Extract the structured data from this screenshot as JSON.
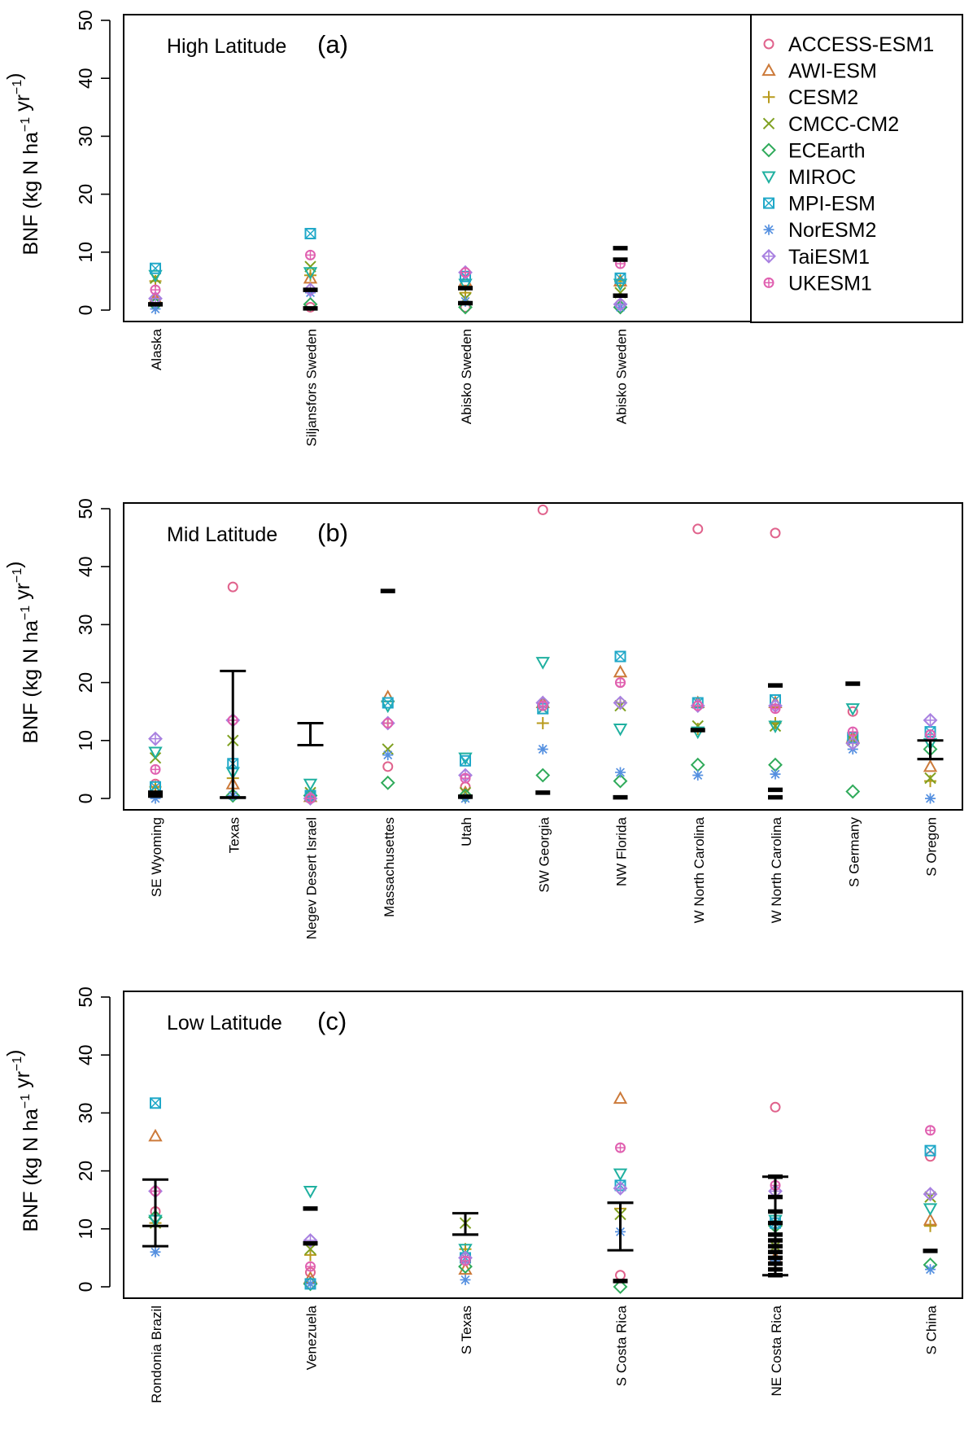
{
  "figure": {
    "y_axis_label": {
      "main": "BNF (kg N  ha",
      "sup1": "−1",
      "mid": "  yr",
      "sup2": "−1",
      "close": ")"
    }
  },
  "legend": [
    {
      "name": "ACCESS-ESM1",
      "color": "#E0628C",
      "marker": "circle"
    },
    {
      "name": "AWI-ESM",
      "color": "#CC7A3A",
      "marker": "triangle-up"
    },
    {
      "name": "CESM2",
      "color": "#B89A1C",
      "marker": "plus"
    },
    {
      "name": "CMCC-CM2",
      "color": "#7FA020",
      "marker": "cross"
    },
    {
      "name": "ECEarth",
      "color": "#2FAA5A",
      "marker": "diamond"
    },
    {
      "name": "MIROC",
      "color": "#1FB0A0",
      "marker": "triangle-down"
    },
    {
      "name": "MPI-ESM",
      "color": "#20A8C8",
      "marker": "square-cross"
    },
    {
      "name": "NorESM2",
      "color": "#5590E0",
      "marker": "asterisk"
    },
    {
      "name": "TaiESM1",
      "color": "#A880E0",
      "marker": "diamond-plus"
    },
    {
      "name": "UKESM1",
      "color": "#E060B0",
      "marker": "circle-plus"
    }
  ],
  "chart_data": [
    {
      "type": "scatter",
      "panel": "(a)",
      "subtitle": "High Latitude",
      "ylabel": "BNF (kg N ha-1 yr-1)",
      "ylim": [
        0,
        50
      ],
      "yticks": [
        0,
        10,
        20,
        30,
        40,
        50
      ],
      "categories": [
        "Alaska",
        "Siljansfors Sweden",
        "Abisko Sweden",
        "Abisko Sweden"
      ],
      "series": [
        {
          "name": "ACCESS-ESM1",
          "values": [
            1.5,
            0.5,
            0.5,
            1.0
          ]
        },
        {
          "name": "AWI-ESM",
          "values": [
            2.0,
            5.5,
            5.0,
            5.0
          ]
        },
        {
          "name": "CESM2",
          "values": [
            5.0,
            6.0,
            3.0,
            5.0
          ]
        },
        {
          "name": "CMCC-CM2",
          "values": [
            5.5,
            7.5,
            2.0,
            3.0
          ]
        },
        {
          "name": "ECEarth",
          "values": [
            1.0,
            1.0,
            0.5,
            0.5
          ]
        },
        {
          "name": "MIROC",
          "values": [
            6.0,
            6.5,
            4.5,
            4.5
          ]
        },
        {
          "name": "MPI-ESM",
          "values": [
            7.2,
            13.2,
            5.8,
            5.5
          ]
        },
        {
          "name": "NorESM2",
          "values": [
            0.2,
            3.0,
            1.5,
            0.5
          ]
        },
        {
          "name": "TaiESM1",
          "values": [
            2.0,
            3.5,
            6.5,
            1.0
          ]
        },
        {
          "name": "UKESM1",
          "values": [
            3.5,
            9.5,
            6.5,
            8.0
          ]
        }
      ],
      "observations": [
        {
          "category_index": 0,
          "marks": [
            1.0
          ]
        },
        {
          "category_index": 1,
          "marks": [
            3.5,
            0.3
          ]
        },
        {
          "category_index": 2,
          "marks": [
            3.8,
            1.2
          ]
        },
        {
          "category_index": 3,
          "marks": [
            10.7,
            8.7,
            2.5
          ]
        }
      ]
    },
    {
      "type": "scatter",
      "panel": "(b)",
      "subtitle": "Mid Latitude",
      "ylabel": "BNF (kg N ha-1 yr-1)",
      "ylim": [
        0,
        50
      ],
      "yticks": [
        0,
        10,
        20,
        30,
        40,
        50
      ],
      "categories": [
        "SE Wyoming",
        "Texas",
        "Negev Desert Israel",
        "Massachusettes",
        "Utah",
        "SW Georgia",
        "NW Florida",
        "W North Carolina",
        "W North Carolina",
        "S Germany",
        "S Oregon"
      ],
      "series": [
        {
          "name": "ACCESS-ESM1",
          "values": [
            2.5,
            36.5,
            0.5,
            5.5,
            2.0,
            49.8,
            20.0,
            46.5,
            45.8,
            15.0,
            11.0
          ]
        },
        {
          "name": "AWI-ESM",
          "values": [
            1.5,
            2.5,
            0.3,
            17.5,
            1.0,
            16.5,
            21.8,
            16.5,
            16.5,
            10.5,
            5.5
          ]
        },
        {
          "name": "CESM2",
          "values": [
            2.0,
            3.5,
            0.5,
            13.0,
            0.5,
            13.0,
            16.5,
            12.0,
            13.0,
            10.0,
            3.0
          ]
        },
        {
          "name": "CMCC-CM2",
          "values": [
            7.0,
            10.0,
            1.0,
            8.5,
            1.0,
            15.5,
            16.0,
            12.5,
            12.5,
            10.0,
            3.5
          ]
        },
        {
          "name": "ECEarth",
          "values": [
            1.0,
            0.5,
            0.5,
            2.7,
            0.5,
            4.0,
            3.0,
            5.8,
            5.8,
            1.2,
            8.5
          ]
        },
        {
          "name": "MIROC",
          "values": [
            8.0,
            4.5,
            2.5,
            16.0,
            7.0,
            23.5,
            12.0,
            11.5,
            12.5,
            15.5,
            9.5
          ]
        },
        {
          "name": "MPI-ESM",
          "values": [
            2.0,
            6.0,
            0.5,
            16.5,
            6.5,
            15.5,
            24.5,
            16.5,
            17.0,
            10.5,
            11.5
          ]
        },
        {
          "name": "NorESM2",
          "values": [
            0.0,
            0.5,
            0.0,
            7.5,
            0.0,
            8.5,
            4.5,
            4.0,
            4.2,
            8.5,
            0.0
          ]
        },
        {
          "name": "TaiESM1",
          "values": [
            10.3,
            13.5,
            0.0,
            13.0,
            4.0,
            16.5,
            16.5,
            16.0,
            16.0,
            9.5,
            13.5
          ]
        },
        {
          "name": "UKESM1",
          "values": [
            5.0,
            13.5,
            0.0,
            13.0,
            3.5,
            16.0,
            20.0,
            16.0,
            15.5,
            11.5,
            11.0
          ]
        }
      ],
      "observations": [
        {
          "category_index": 0,
          "marks": [
            1.0,
            0.5
          ]
        },
        {
          "category_index": 1,
          "mean": 0.2,
          "error_bar": [
            0.1,
            22.0
          ]
        },
        {
          "category_index": 2,
          "mean": 9.2,
          "error_bar": [
            9.2,
            13.0
          ]
        },
        {
          "category_index": 3,
          "marks": [
            35.8
          ]
        },
        {
          "category_index": 4,
          "marks": [
            0.3
          ]
        },
        {
          "category_index": 5,
          "marks": [
            1.0
          ]
        },
        {
          "category_index": 6,
          "marks": [
            0.2
          ]
        },
        {
          "category_index": 7,
          "marks": [
            11.8
          ]
        },
        {
          "category_index": 8,
          "marks": [
            19.5,
            1.5,
            0.2
          ]
        },
        {
          "category_index": 9,
          "marks": [
            19.8
          ]
        },
        {
          "category_index": 10,
          "mean": 6.8,
          "error_bar": [
            6.8,
            10.0
          ]
        }
      ]
    },
    {
      "type": "scatter",
      "panel": "(c)",
      "subtitle": "Low Latitude",
      "ylabel": "BNF (kg N ha-1 yr-1)",
      "ylim": [
        0,
        50
      ],
      "yticks": [
        0,
        10,
        20,
        30,
        40,
        50
      ],
      "categories": [
        "Rondonia Brazil",
        "Venezuela",
        "S Texas",
        "S Costa Rica",
        "NE Costa Rica",
        "S China"
      ],
      "series": [
        {
          "name": "ACCESS-ESM1",
          "values": [
            13.0,
            2.5,
            5.0,
            2.0,
            31.0,
            22.5
          ]
        },
        {
          "name": "AWI-ESM",
          "values": [
            26.0,
            1.5,
            3.0,
            32.5,
            5.0,
            11.5
          ]
        },
        {
          "name": "CESM2",
          "values": [
            11.0,
            5.5,
            6.5,
            13.5,
            6.0,
            10.5
          ]
        },
        {
          "name": "CMCC-CM2",
          "values": [
            11.0,
            6.5,
            11.0,
            12.5,
            7.0,
            15.5
          ]
        },
        {
          "name": "ECEarth",
          "values": [
            12.0,
            0.5,
            3.5,
            0.0,
            10.5,
            3.8
          ]
        },
        {
          "name": "MIROC",
          "values": [
            11.5,
            16.5,
            6.5,
            19.5,
            11.5,
            13.5
          ]
        },
        {
          "name": "MPI-ESM",
          "values": [
            31.7,
            0.5,
            5.0,
            17.5,
            11.0,
            23.5
          ]
        },
        {
          "name": "NorESM2",
          "values": [
            6.0,
            0.5,
            1.2,
            9.5,
            4.5,
            3.0
          ]
        },
        {
          "name": "TaiESM1",
          "values": [
            16.5,
            8.0,
            5.0,
            17.0,
            16.5,
            16.0
          ]
        },
        {
          "name": "UKESM1",
          "values": [
            16.5,
            3.5,
            4.5,
            24.0,
            17.5,
            27.0
          ]
        }
      ],
      "observations": [
        {
          "category_index": 0,
          "mean": 10.5,
          "error_bar": [
            7.0,
            18.5
          ]
        },
        {
          "category_index": 1,
          "marks": [
            13.5,
            7.5
          ]
        },
        {
          "category_index": 2,
          "mean": 9.0,
          "error_bar": [
            9.0,
            12.7
          ]
        },
        {
          "category_index": 3,
          "mean": 14.5,
          "error_bar": [
            6.3,
            14.5
          ],
          "marks": [
            1.0
          ]
        },
        {
          "category_index": 4,
          "error_bar": [
            2.0,
            19.0
          ],
          "marks": [
            19.0,
            15.5,
            13.0,
            11.0,
            9.0,
            8.0,
            7.0,
            6.0,
            5.0,
            4.0,
            3.0,
            2.0
          ]
        },
        {
          "category_index": 5,
          "marks": [
            6.2
          ]
        }
      ]
    }
  ]
}
